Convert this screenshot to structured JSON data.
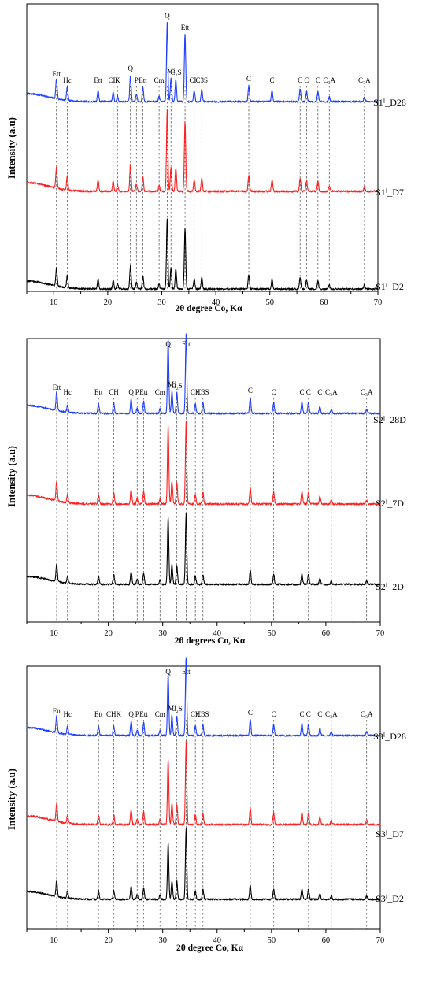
{
  "chart_data": [
    {
      "type": "line",
      "x_label": "2θ degree Co, Kα",
      "y_label": "Intensity (a.u)",
      "xlim": [
        5,
        70
      ],
      "x_ticks": [
        10,
        20,
        30,
        40,
        50,
        60,
        70
      ],
      "series": [
        {
          "name": "S1ᴵ_D28",
          "color": "#1f3fff"
        },
        {
          "name": "S1ᴵ_D7",
          "color": "#ff2020"
        },
        {
          "name": "S1ᴵ_D2",
          "color": "#000000"
        }
      ],
      "peaks": [
        {
          "label": "Ett",
          "x": 10.5,
          "h": 0.26
        },
        {
          "label": "Hc",
          "x": 12.5,
          "h": 0.18
        },
        {
          "label": "Ett",
          "x": 18.2,
          "h": 0.14
        },
        {
          "label": "CH",
          "x": 21.0,
          "h": 0.12
        },
        {
          "label": "K",
          "x": 21.8,
          "h": 0.08
        },
        {
          "label": "Q",
          "x": 24.2,
          "h": 0.33
        },
        {
          "label": "P",
          "x": 25.3,
          "h": 0.09
        },
        {
          "label": "Ett",
          "x": 26.5,
          "h": 0.18
        },
        {
          "label": "Cm",
          "x": 29.5,
          "h": 0.07
        },
        {
          "label": "Q",
          "x": 31.0,
          "h": 1.0
        },
        {
          "label": "Mi",
          "x": 31.7,
          "h": 0.3
        },
        {
          "label": "C₂S",
          "x": 32.6,
          "h": 0.28
        },
        {
          "label": "Ett",
          "x": 34.3,
          "h": 0.85
        },
        {
          "label": "CH",
          "x": 36.0,
          "h": 0.14
        },
        {
          "label": "C3S",
          "x": 37.4,
          "h": 0.16
        },
        {
          "label": "C",
          "x": 46.1,
          "h": 0.2
        },
        {
          "label": "C",
          "x": 50.4,
          "h": 0.14
        },
        {
          "label": "C",
          "x": 55.6,
          "h": 0.16
        },
        {
          "label": "C",
          "x": 56.8,
          "h": 0.13
        },
        {
          "label": "C",
          "x": 58.9,
          "h": 0.12
        },
        {
          "label": "C₃A",
          "x": 61.0,
          "h": 0.06
        },
        {
          "label": "C₃A",
          "x": 67.5,
          "h": 0.06
        }
      ]
    },
    {
      "type": "line",
      "x_label": "2θ degrees Co, Kα",
      "y_label": "Intensity (a.u)",
      "xlim": [
        5,
        70
      ],
      "x_ticks": [
        10,
        20,
        30,
        40,
        50,
        60,
        70
      ],
      "series": [
        {
          "name": "S2ᴵ_28D",
          "color": "#1f3fff"
        },
        {
          "name": "S2ᴵ_7D",
          "color": "#ff2020"
        },
        {
          "name": "S2ᴵ_2D",
          "color": "#000000"
        }
      ],
      "peaks": [
        {
          "label": "Ett",
          "x": 10.5,
          "h": 0.24
        },
        {
          "label": "Hc",
          "x": 12.5,
          "h": 0.1
        },
        {
          "label": "Ett",
          "x": 18.2,
          "h": 0.12
        },
        {
          "label": "CH",
          "x": 21.0,
          "h": 0.14
        },
        {
          "label": "Q",
          "x": 24.2,
          "h": 0.18
        },
        {
          "label": "P",
          "x": 25.3,
          "h": 0.07
        },
        {
          "label": "Ett",
          "x": 26.5,
          "h": 0.15
        },
        {
          "label": "Cm",
          "x": 29.5,
          "h": 0.06
        },
        {
          "label": "Q",
          "x": 31.0,
          "h": 0.95
        },
        {
          "label": "Mi",
          "x": 31.7,
          "h": 0.28
        },
        {
          "label": "C₂S",
          "x": 32.6,
          "h": 0.26
        },
        {
          "label": "Ett",
          "x": 34.3,
          "h": 1.0
        },
        {
          "label": "CH",
          "x": 36.0,
          "h": 0.12
        },
        {
          "label": "C3S",
          "x": 37.4,
          "h": 0.14
        },
        {
          "label": "C",
          "x": 46.1,
          "h": 0.2
        },
        {
          "label": "C",
          "x": 50.4,
          "h": 0.14
        },
        {
          "label": "C",
          "x": 55.6,
          "h": 0.15
        },
        {
          "label": "C",
          "x": 56.8,
          "h": 0.14
        },
        {
          "label": "C",
          "x": 58.9,
          "h": 0.09
        },
        {
          "label": "C₃A",
          "x": 61.0,
          "h": 0.05
        },
        {
          "label": "C₃A",
          "x": 67.5,
          "h": 0.05
        }
      ]
    },
    {
      "type": "line",
      "x_label": "2θ degree Co, Kα",
      "y_label": "Intensity (a.u)",
      "xlim": [
        5,
        70
      ],
      "x_ticks": [
        10,
        20,
        30,
        40,
        50,
        60,
        70
      ],
      "series": [
        {
          "name": "S3ᴵ_D28",
          "color": "#1f3fff"
        },
        {
          "name": "S3ᴵ_D7",
          "color": "#ff2020"
        },
        {
          "name": "S3ᴵ_D2",
          "color": "#000000"
        }
      ],
      "peaks": [
        {
          "label": "Ett",
          "x": 10.5,
          "h": 0.22
        },
        {
          "label": "Hc",
          "x": 12.5,
          "h": 0.1
        },
        {
          "label": "Ett",
          "x": 18.2,
          "h": 0.12
        },
        {
          "label": "CHK",
          "x": 21.0,
          "h": 0.12
        },
        {
          "label": "Q",
          "x": 24.2,
          "h": 0.18
        },
        {
          "label": "P",
          "x": 25.3,
          "h": 0.07
        },
        {
          "label": "Ett",
          "x": 26.5,
          "h": 0.16
        },
        {
          "label": "Cm",
          "x": 29.5,
          "h": 0.06
        },
        {
          "label": "Q",
          "x": 31.0,
          "h": 0.8
        },
        {
          "label": "Mi",
          "x": 31.7,
          "h": 0.26
        },
        {
          "label": "C₂S",
          "x": 32.6,
          "h": 0.25
        },
        {
          "label": "Ett",
          "x": 34.3,
          "h": 1.0
        },
        {
          "label": "CH",
          "x": 36.0,
          "h": 0.12
        },
        {
          "label": "C3S",
          "x": 37.4,
          "h": 0.14
        },
        {
          "label": "C",
          "x": 46.1,
          "h": 0.2
        },
        {
          "label": "C",
          "x": 50.4,
          "h": 0.14
        },
        {
          "label": "C",
          "x": 55.6,
          "h": 0.15
        },
        {
          "label": "C",
          "x": 56.8,
          "h": 0.14
        },
        {
          "label": "C",
          "x": 58.9,
          "h": 0.09
        },
        {
          "label": "C₃A",
          "x": 61.0,
          "h": 0.05
        },
        {
          "label": "C₃A",
          "x": 67.5,
          "h": 0.05
        }
      ]
    }
  ]
}
